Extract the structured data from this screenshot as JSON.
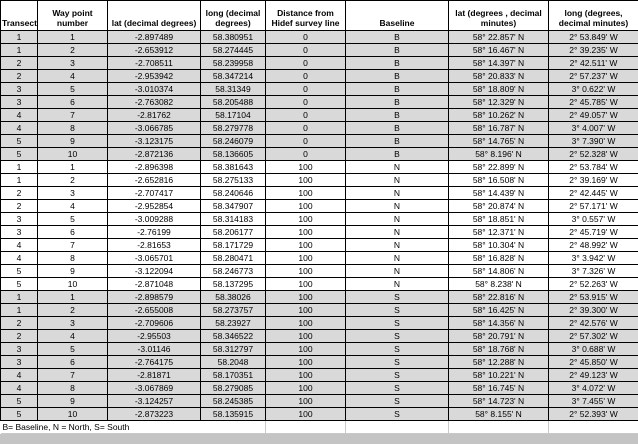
{
  "colors": {
    "section_fill": "#d9d9d9",
    "grid_line": "#000000",
    "footer_grid_line": "#c9c9c9",
    "background_strip": "#c4c4c4",
    "cell_background": "#ffffff"
  },
  "table": {
    "headers": [
      "Transect",
      "Way point number",
      "lat (decimal degrees)",
      "long (decimal degrees)",
      "Distance from Hidef survey line",
      "Baseline",
      "lat (degrees , decimal minutes)",
      "long (degrees, decimal minutes)"
    ],
    "sections": [
      {
        "name": "baseline",
        "shaded": true,
        "rows": [
          [
            "1",
            "1",
            "-2.897489",
            "58.380951",
            "0",
            "B",
            "58° 22.857' N",
            "2° 53.849' W"
          ],
          [
            "1",
            "2",
            "-2.653912",
            "58.274445",
            "0",
            "B",
            "58° 16.467' N",
            "2° 39.235' W"
          ],
          [
            "2",
            "3",
            "-2.708511",
            "58.239958",
            "0",
            "B",
            "58° 14.397' N",
            "2° 42.511' W"
          ],
          [
            "2",
            "4",
            "-2.953942",
            "58.347214",
            "0",
            "B",
            "58° 20.833' N",
            "2° 57.237' W"
          ],
          [
            "3",
            "5",
            "-3.010374",
            "58.31349",
            "0",
            "B",
            "58° 18.809' N",
            "3° 0.622' W"
          ],
          [
            "3",
            "6",
            "-2.763082",
            "58.205488",
            "0",
            "B",
            "58° 12.329' N",
            "2° 45.785' W"
          ],
          [
            "4",
            "7",
            "-2.81762",
            "58.17104",
            "0",
            "B",
            "58° 10.262' N",
            "2° 49.057' W"
          ],
          [
            "4",
            "8",
            "-3.066785",
            "58.279778",
            "0",
            "B",
            "58° 16.787' N",
            "3° 4.007' W"
          ],
          [
            "5",
            "9",
            "-3.123175",
            "58.246079",
            "0",
            "B",
            "58° 14.765' N",
            "3° 7.390' W"
          ],
          [
            "5",
            "10",
            "-2.872136",
            "58.136605",
            "0",
            "B",
            "58° 8.196' N",
            "2° 52.328' W"
          ]
        ]
      },
      {
        "name": "north",
        "shaded": false,
        "rows": [
          [
            "1",
            "1",
            "-2.896398",
            "58.381643",
            "100",
            "N",
            "58° 22.899' N",
            "2° 53.784' W"
          ],
          [
            "1",
            "2",
            "-2.652816",
            "58.275133",
            "100",
            "N",
            "58° 16.508' N",
            "2° 39.169' W"
          ],
          [
            "2",
            "3",
            "-2.707417",
            "58.240646",
            "100",
            "N",
            "58° 14.439' N",
            "2° 42.445' W"
          ],
          [
            "2",
            "4",
            "-2.952854",
            "58.347907",
            "100",
            "N",
            "58° 20.874' N",
            "2° 57.171' W"
          ],
          [
            "3",
            "5",
            "-3.009288",
            "58.314183",
            "100",
            "N",
            "58° 18.851' N",
            "3° 0.557' W"
          ],
          [
            "3",
            "6",
            "-2.76199",
            "58.206177",
            "100",
            "N",
            "58° 12.371' N",
            "2° 45.719' W"
          ],
          [
            "4",
            "7",
            "-2.81653",
            "58.171729",
            "100",
            "N",
            "58° 10.304' N",
            "2° 48.992' W"
          ],
          [
            "4",
            "8",
            "-3.065701",
            "58.280471",
            "100",
            "N",
            "58° 16.828' N",
            "3° 3.942' W"
          ],
          [
            "5",
            "9",
            "-3.122094",
            "58.246773",
            "100",
            "N",
            "58° 14.806' N",
            "3° 7.326' W"
          ],
          [
            "5",
            "10",
            "-2.871048",
            "58.137295",
            "100",
            "N",
            "58° 8.238' N",
            "2° 52.263' W"
          ]
        ]
      },
      {
        "name": "south",
        "shaded": true,
        "rows": [
          [
            "1",
            "1",
            "-2.898579",
            "58.38026",
            "100",
            "S",
            "58° 22.816' N",
            "2° 53.915' W"
          ],
          [
            "1",
            "2",
            "-2.655008",
            "58.273757",
            "100",
            "S",
            "58° 16.425' N",
            "2° 39.300' W"
          ],
          [
            "2",
            "3",
            "-2.709606",
            "58.23927",
            "100",
            "S",
            "58° 14.356' N",
            "2° 42.576' W"
          ],
          [
            "2",
            "4",
            "-2.95503",
            "58.346522",
            "100",
            "S",
            "58° 20.791' N",
            "2° 57.302' W"
          ],
          [
            "3",
            "5",
            "-3.01146",
            "58.312797",
            "100",
            "S",
            "58° 18.768' N",
            "3° 0.688' W"
          ],
          [
            "3",
            "6",
            "-2.764175",
            "58.2048",
            "100",
            "S",
            "58° 12.288' N",
            "2° 45.850' W"
          ],
          [
            "4",
            "7",
            "-2.81871",
            "58.170351",
            "100",
            "S",
            "58° 10.221' N",
            "2° 49.123' W"
          ],
          [
            "4",
            "8",
            "-3.067869",
            "58.279085",
            "100",
            "S",
            "58° 16.745' N",
            "3° 4.072' W"
          ],
          [
            "5",
            "9",
            "-3.124257",
            "58.245385",
            "100",
            "S",
            "58° 14.723' N",
            "3° 7.455' W"
          ],
          [
            "5",
            "10",
            "-2.873223",
            "58.135915",
            "100",
            "S",
            "58° 8.155' N",
            "2° 52.393' W"
          ]
        ]
      }
    ],
    "footnote": "B= Baseline, N = North, S= South"
  }
}
